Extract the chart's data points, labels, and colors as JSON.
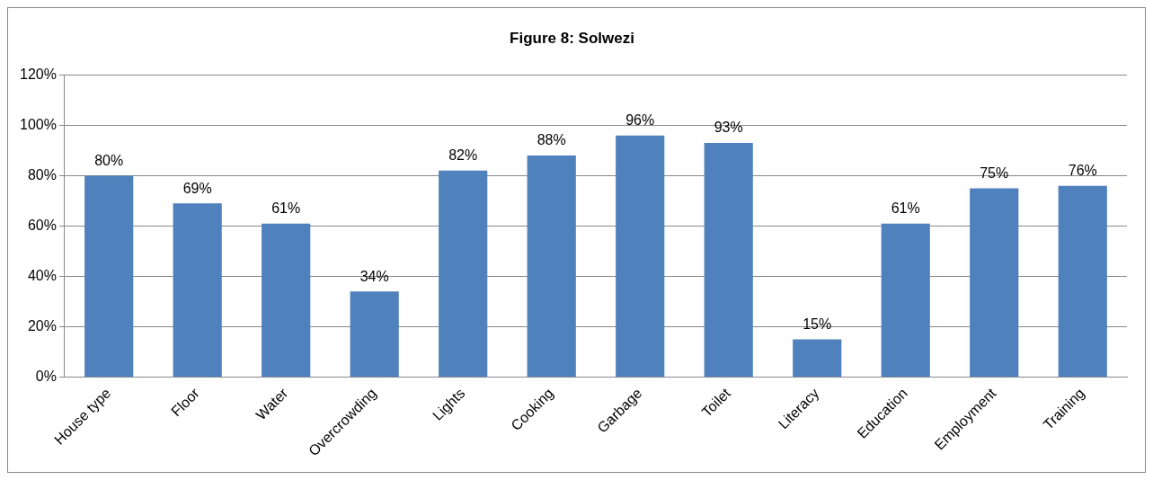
{
  "chart_data": {
    "type": "bar",
    "title": "Figure 8: Solwezi",
    "categories": [
      "House type",
      "Floor",
      "Water",
      "Overcrowding",
      "Lights",
      "Cooking",
      "Garbage",
      "Toilet",
      "Literacy",
      "Education",
      "Employment",
      "Training"
    ],
    "values": [
      80,
      69,
      61,
      34,
      82,
      88,
      96,
      93,
      15,
      61,
      75,
      76
    ],
    "value_labels": [
      "80%",
      "69%",
      "61%",
      "34%",
      "82%",
      "88%",
      "96%",
      "93%",
      "15%",
      "61%",
      "75%",
      "76%"
    ],
    "color": "#4f81bd",
    "ylim": [
      0,
      120
    ],
    "yticks": [
      {
        "value": 0,
        "label": "0%"
      },
      {
        "value": 20,
        "label": "20%"
      },
      {
        "value": 40,
        "label": "40%"
      },
      {
        "value": 60,
        "label": "60%"
      },
      {
        "value": 80,
        "label": "80%"
      },
      {
        "value": 100,
        "label": "100%"
      },
      {
        "value": 120,
        "label": "120%"
      }
    ],
    "grid": "y",
    "legend": false
  }
}
